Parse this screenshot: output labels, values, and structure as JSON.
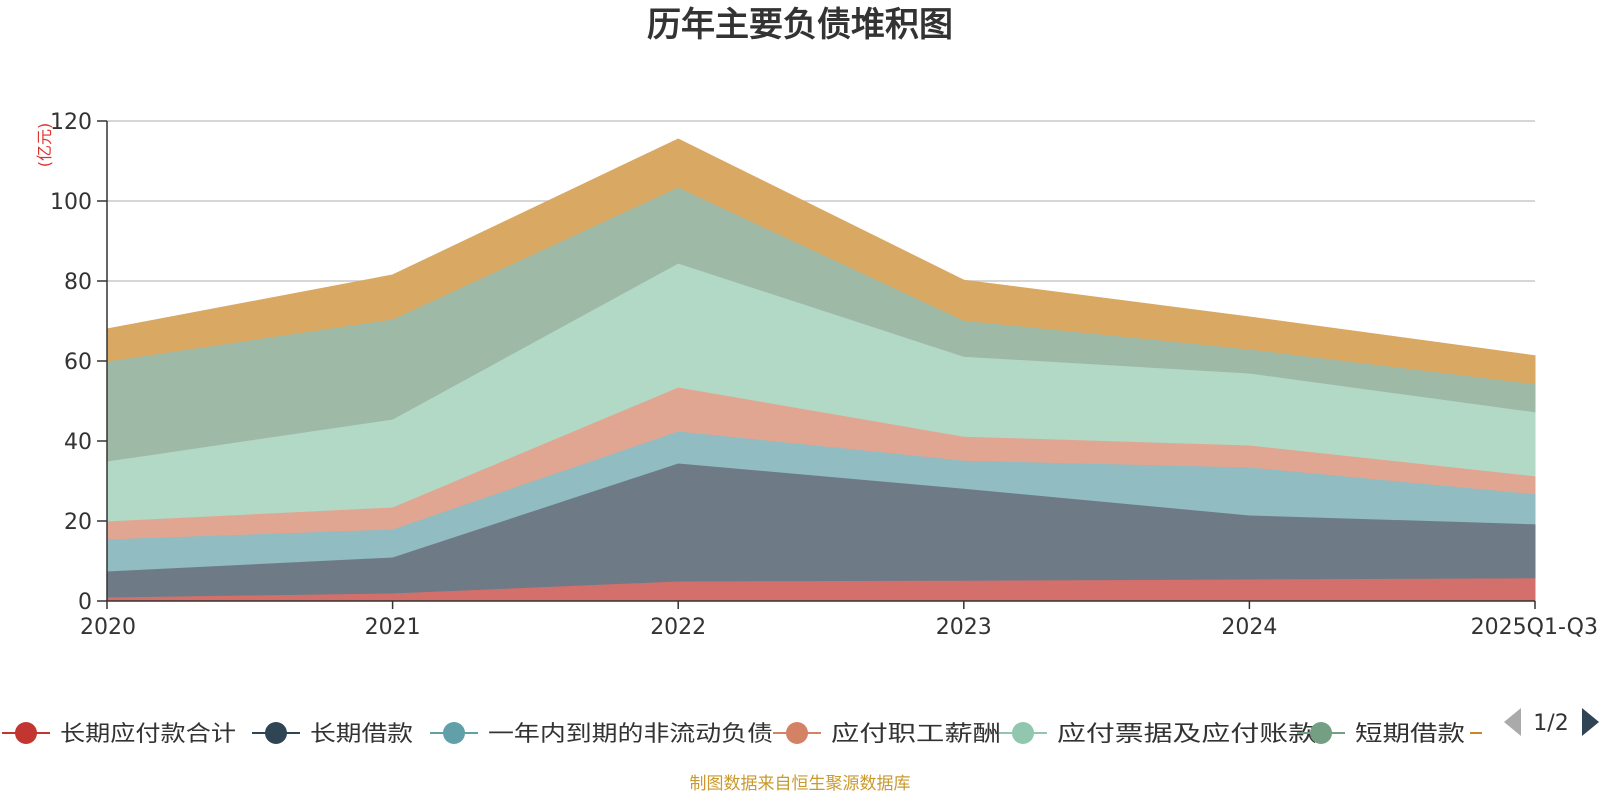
{
  "chart_data": {
    "type": "area",
    "stacked": true,
    "title": "历年主要负债堆积图",
    "unit_label": "(亿元)",
    "categories": [
      "2020",
      "2021",
      "2022",
      "2023",
      "2024",
      "2025Q1-Q3"
    ],
    "ylim": [
      0,
      120
    ],
    "yticks": [
      0,
      20,
      40,
      60,
      80,
      100,
      120
    ],
    "grid": true,
    "legend_position": "bottom",
    "series": [
      {
        "name": "长期应付款合计",
        "color": "#c23531",
        "fill": "#d4706c",
        "values": [
          1,
          2,
          5,
          5.2,
          5.5,
          5.8
        ]
      },
      {
        "name": "长期借款",
        "color": "#2f4554",
        "fill": "#6e7b86",
        "values": [
          6.5,
          9,
          29.5,
          23,
          16,
          13.5
        ]
      },
      {
        "name": "一年内到期的非流动负债",
        "color": "#61a0a8",
        "fill": "#90bcc2",
        "values": [
          8,
          7,
          8,
          7,
          12,
          7.5
        ]
      },
      {
        "name": "应付职工薪酬",
        "color": "#d48265",
        "fill": "#e1a691",
        "values": [
          4.5,
          5.5,
          11,
          6,
          5.5,
          4.5
        ]
      },
      {
        "name": "应付票据及应付账款",
        "color": "#91c7ae",
        "fill": "#b2d8c6",
        "values": [
          15,
          22,
          31,
          20,
          18,
          16
        ]
      },
      {
        "name": "短期借款",
        "color": "#749f83",
        "fill": "#9eb9a6",
        "values": [
          25,
          25,
          19,
          9,
          6,
          7
        ]
      },
      {
        "name": "",
        "color": "#ca8622",
        "fill": "#d9a862",
        "values": [
          8,
          11,
          12,
          10,
          8,
          7
        ]
      }
    ]
  },
  "legend": {
    "page_label": "1/2"
  },
  "source_note": "制图数据来自恒生聚源数据库"
}
